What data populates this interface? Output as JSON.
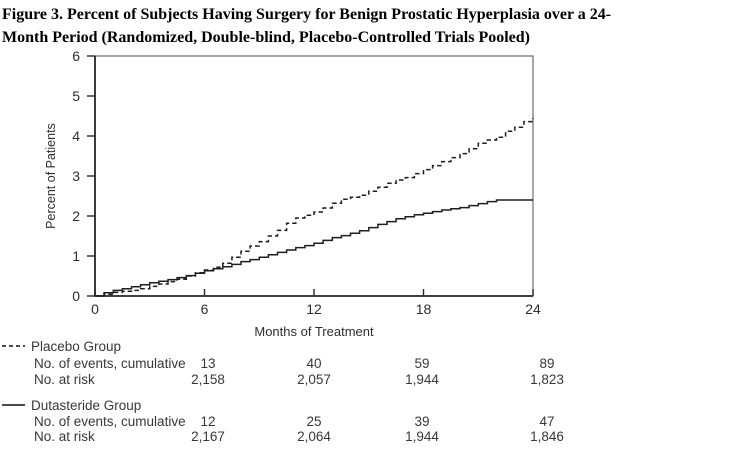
{
  "figure": {
    "title_line1": "Figure 3. Percent of Subjects Having Surgery for Benign Prostatic Hyperplasia over a 24-",
    "title_line2": "Month Period (Randomized, Double-blind, Placebo-Controlled Trials Pooled)"
  },
  "chart_data": {
    "type": "line",
    "title": "",
    "xlabel": "Months of Treatment",
    "ylabel": "Percent of Patients",
    "xlim": [
      0,
      24
    ],
    "ylim": [
      0,
      6
    ],
    "x_ticks": [
      0,
      6,
      12,
      18,
      24
    ],
    "y_ticks": [
      0,
      1,
      2,
      3,
      4,
      5,
      6
    ],
    "grid": false,
    "legend_position": "below-as-table",
    "series": [
      {
        "name": "Placebo Group",
        "style": "dashed",
        "points": [
          [
            0,
            0
          ],
          [
            0.5,
            0.04
          ],
          [
            1,
            0.09
          ],
          [
            1.5,
            0.12
          ],
          [
            2,
            0.14
          ],
          [
            2.5,
            0.18
          ],
          [
            3,
            0.24
          ],
          [
            3.5,
            0.3
          ],
          [
            4,
            0.36
          ],
          [
            4.5,
            0.42
          ],
          [
            5,
            0.5
          ],
          [
            5.5,
            0.58
          ],
          [
            6,
            0.65
          ],
          [
            6.5,
            0.72
          ],
          [
            7,
            0.82
          ],
          [
            7.5,
            0.97
          ],
          [
            8,
            1.12
          ],
          [
            8.5,
            1.25
          ],
          [
            9,
            1.36
          ],
          [
            9.5,
            1.5
          ],
          [
            10,
            1.64
          ],
          [
            10.5,
            1.82
          ],
          [
            11,
            1.95
          ],
          [
            11.5,
            2.02
          ],
          [
            12,
            2.1
          ],
          [
            12.5,
            2.2
          ],
          [
            13,
            2.32
          ],
          [
            13.5,
            2.42
          ],
          [
            14,
            2.47
          ],
          [
            14.5,
            2.52
          ],
          [
            15,
            2.62
          ],
          [
            15.5,
            2.72
          ],
          [
            16,
            2.82
          ],
          [
            16.5,
            2.9
          ],
          [
            17,
            2.96
          ],
          [
            17.5,
            3.06
          ],
          [
            18,
            3.16
          ],
          [
            18.5,
            3.26
          ],
          [
            19,
            3.36
          ],
          [
            19.5,
            3.46
          ],
          [
            20,
            3.56
          ],
          [
            20.5,
            3.68
          ],
          [
            21,
            3.82
          ],
          [
            21.5,
            3.9
          ],
          [
            22,
            3.97
          ],
          [
            22.5,
            4.12
          ],
          [
            23,
            4.22
          ],
          [
            23.5,
            4.36
          ],
          [
            24,
            4.45
          ]
        ]
      },
      {
        "name": "Dutasteride Group",
        "style": "solid",
        "points": [
          [
            0,
            0
          ],
          [
            0.5,
            0.08
          ],
          [
            1,
            0.14
          ],
          [
            1.5,
            0.18
          ],
          [
            2,
            0.23
          ],
          [
            2.5,
            0.28
          ],
          [
            3,
            0.33
          ],
          [
            3.5,
            0.37
          ],
          [
            4,
            0.41
          ],
          [
            4.5,
            0.46
          ],
          [
            5,
            0.51
          ],
          [
            5.5,
            0.57
          ],
          [
            6,
            0.63
          ],
          [
            6.5,
            0.68
          ],
          [
            7,
            0.73
          ],
          [
            7.5,
            0.79
          ],
          [
            8,
            0.86
          ],
          [
            8.5,
            0.91
          ],
          [
            9,
            0.97
          ],
          [
            9.5,
            1.03
          ],
          [
            10,
            1.09
          ],
          [
            10.5,
            1.15
          ],
          [
            11,
            1.21
          ],
          [
            11.5,
            1.26
          ],
          [
            12,
            1.32
          ],
          [
            12.5,
            1.39
          ],
          [
            13,
            1.46
          ],
          [
            13.5,
            1.51
          ],
          [
            14,
            1.57
          ],
          [
            14.5,
            1.63
          ],
          [
            15,
            1.71
          ],
          [
            15.5,
            1.79
          ],
          [
            16,
            1.86
          ],
          [
            16.5,
            1.93
          ],
          [
            17,
            1.98
          ],
          [
            17.5,
            2.03
          ],
          [
            18,
            2.07
          ],
          [
            18.5,
            2.11
          ],
          [
            19,
            2.15
          ],
          [
            19.5,
            2.18
          ],
          [
            20,
            2.21
          ],
          [
            20.5,
            2.26
          ],
          [
            21,
            2.31
          ],
          [
            21.5,
            2.36
          ],
          [
            22,
            2.4
          ],
          [
            24,
            2.4
          ]
        ]
      }
    ]
  },
  "table": {
    "month_columns": [
      "6",
      "12",
      "18",
      "24"
    ],
    "groups": [
      {
        "name": "Placebo Group",
        "marker": "dashed",
        "rows": [
          {
            "label": "No. of events, cumulative",
            "values": [
              "13",
              "40",
              "59",
              "89"
            ]
          },
          {
            "label": "No. at risk",
            "values": [
              "2,158",
              "2,057",
              "1,944",
              "1,823"
            ]
          }
        ]
      },
      {
        "name": "Dutasteride Group",
        "marker": "solid",
        "rows": [
          {
            "label": "No. of events, cumulative",
            "values": [
              "12",
              "25",
              "39",
              "47"
            ]
          },
          {
            "label": "No. at risk",
            "values": [
              "2,167",
              "2,064",
              "1,944",
              "1,846"
            ]
          }
        ]
      }
    ]
  },
  "colors": {
    "ink": "#1f1f1f",
    "frame": "#6a6a6a",
    "text": "#2e2e2e",
    "title": "#000000",
    "background": "#ffffff"
  }
}
